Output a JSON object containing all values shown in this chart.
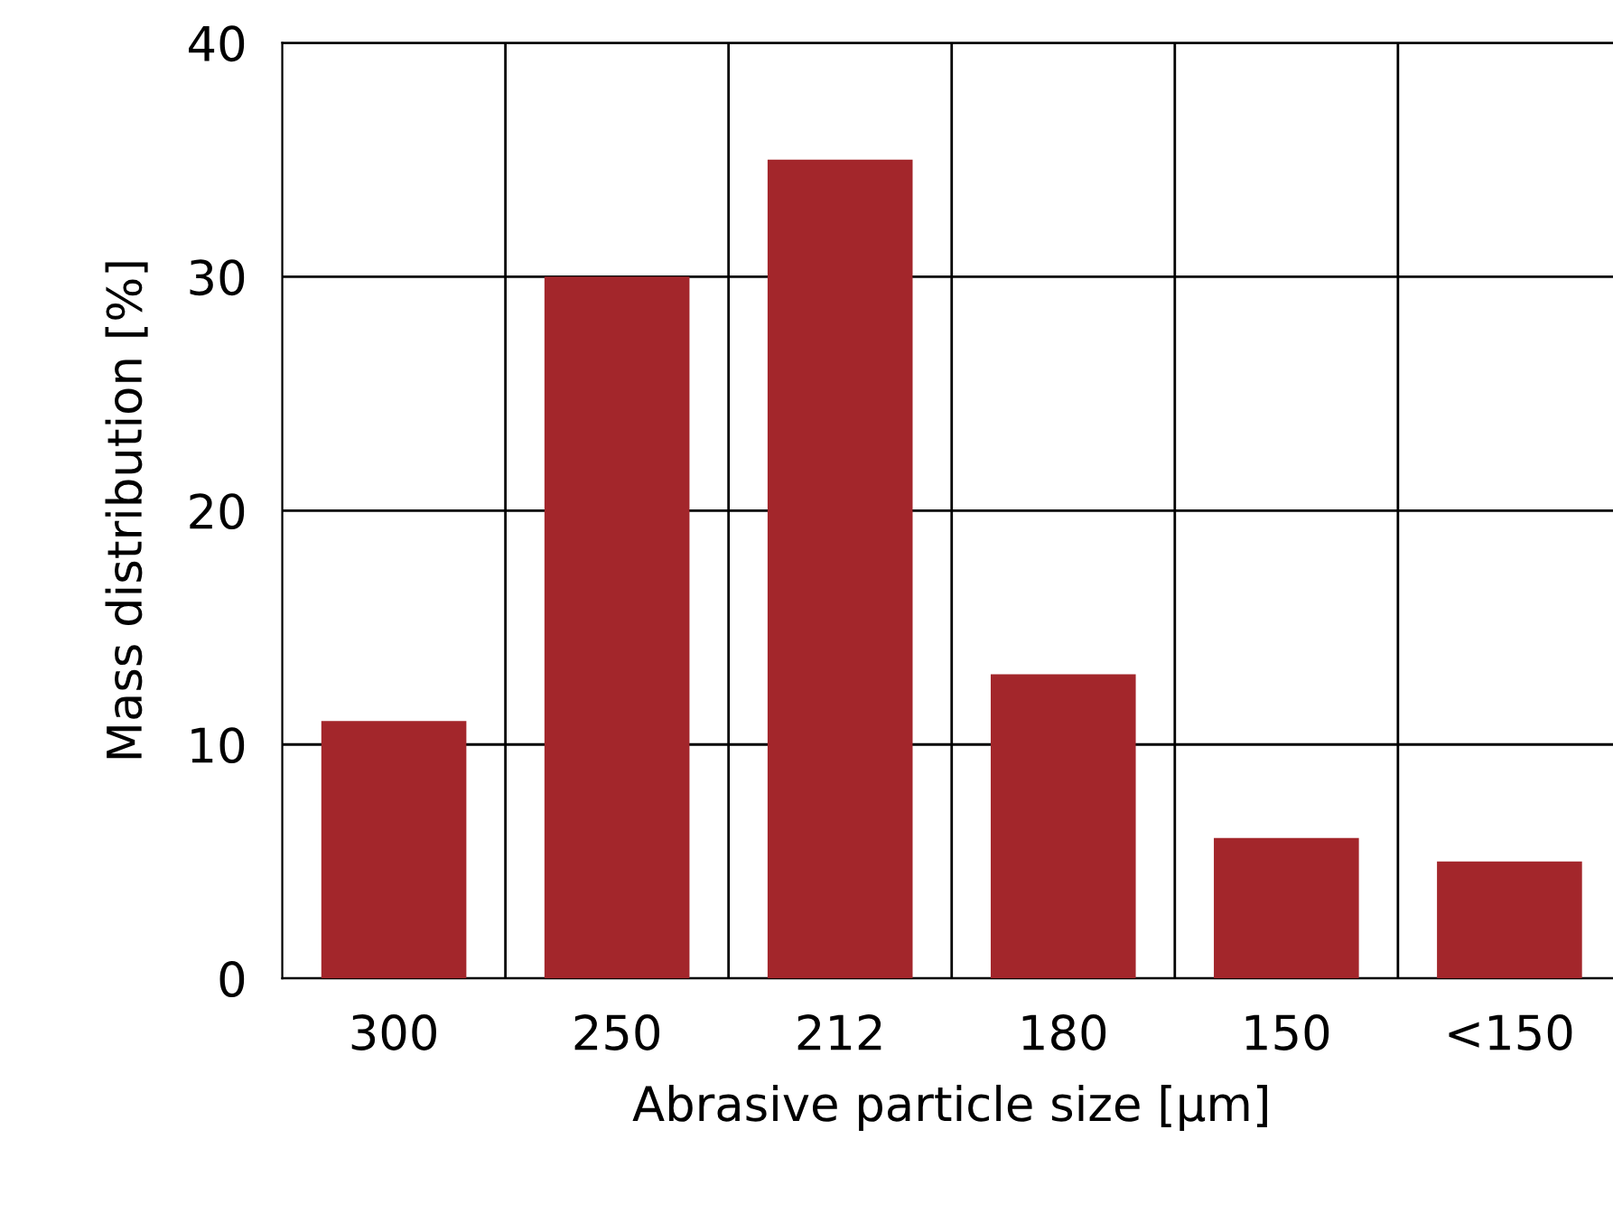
{
  "chart_data": {
    "type": "bar",
    "xlabel": "Abrasive particle size [μm]",
    "ylabel": "Mass distribution [%]",
    "categories": [
      "300",
      "250",
      "212",
      "180",
      "150",
      "<150"
    ],
    "values": [
      11,
      30,
      35,
      13,
      6,
      5
    ],
    "color": "#a3262b",
    "ylim": [
      0,
      40
    ],
    "yticks": [
      0,
      10,
      20,
      30,
      40
    ],
    "grid": true
  }
}
